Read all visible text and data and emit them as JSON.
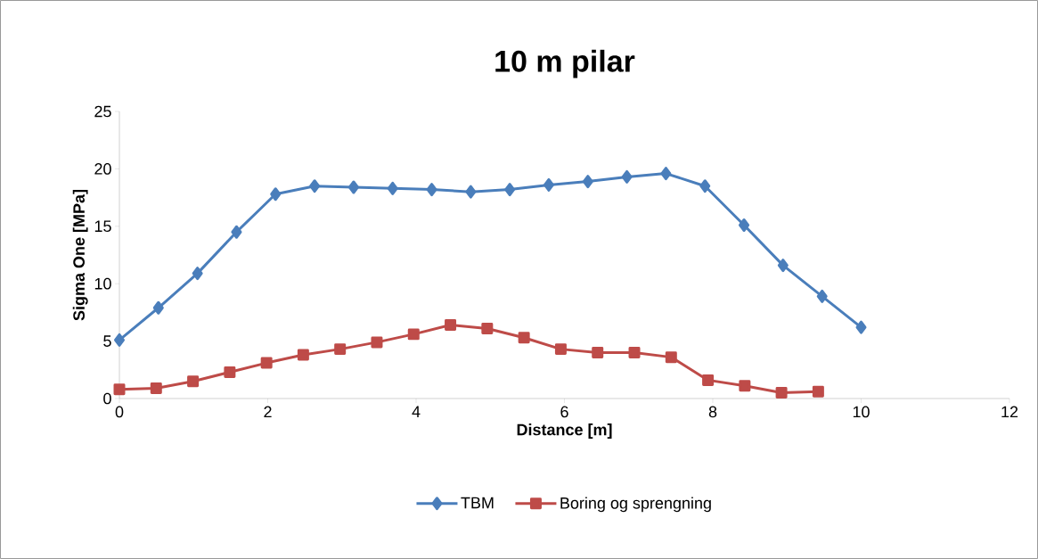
{
  "chart_data": {
    "type": "line",
    "title": "10 m pilar",
    "xlabel": "Distance [m]",
    "ylabel": "Sigma One [MPa]",
    "xlim": [
      0,
      12
    ],
    "xticks": [
      0,
      2,
      4,
      6,
      8,
      10,
      12
    ],
    "ylim": [
      0,
      25
    ],
    "yticks": [
      0,
      5,
      10,
      15,
      20,
      25
    ],
    "legend": "bottom",
    "line_style": "solid",
    "series": [
      {
        "name": "TBM",
        "color": "#4a7ebb",
        "marker": "diamond",
        "x": [
          0,
          0.526,
          1.053,
          1.579,
          2.105,
          2.632,
          3.158,
          3.684,
          4.211,
          4.737,
          5.263,
          5.789,
          6.316,
          6.842,
          7.368,
          7.895,
          8.421,
          8.947,
          9.474,
          10
        ],
        "values": [
          5.1,
          7.9,
          10.9,
          14.5,
          17.8,
          18.5,
          18.4,
          18.3,
          18.2,
          18.0,
          18.2,
          18.6,
          18.9,
          19.3,
          19.6,
          18.5,
          15.1,
          11.6,
          8.9,
          6.2
        ]
      },
      {
        "name": "Boring og sprengning",
        "color": "#be4b48",
        "marker": "square",
        "x": [
          0,
          0.496,
          0.992,
          1.488,
          1.984,
          2.479,
          2.975,
          3.471,
          3.967,
          4.463,
          4.959,
          5.455,
          5.951,
          6.447,
          6.943,
          7.439,
          7.935,
          8.431,
          8.926,
          9.422
        ],
        "values": [
          0.8,
          0.9,
          1.5,
          2.3,
          3.1,
          3.8,
          4.3,
          4.9,
          5.6,
          6.4,
          6.1,
          5.3,
          4.3,
          4.0,
          4.0,
          3.6,
          1.6,
          1.1,
          0.5,
          0.6
        ]
      }
    ]
  }
}
